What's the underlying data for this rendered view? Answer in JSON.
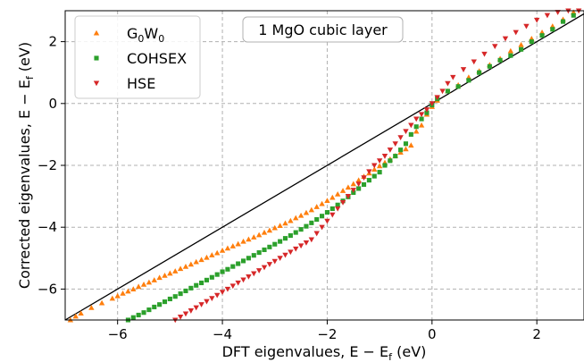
{
  "chart_data": {
    "type": "scatter",
    "title": "1 MgO cubic layer",
    "xlabel_text": "DFT eigenvalues, E",
    "xlabel_units": "(eV)",
    "ylabel_text": "Corrected eigenvalues, E",
    "ylabel_units": "(eV)",
    "sub_f": "f",
    "xlim": [
      -7.0,
      2.9
    ],
    "ylim": [
      -7.0,
      3.0
    ],
    "xticks": [
      -6,
      -4,
      -2,
      0,
      2
    ],
    "yticks": [
      -6,
      -4,
      -2,
      0,
      2
    ],
    "tick_labels": {
      "-6": "−6",
      "-4": "−4",
      "-2": "−2",
      "0": "0",
      "2": "2"
    },
    "grid": true,
    "legend_placement": "top-left",
    "diagonal": {
      "name": "y = x",
      "color": "#000000"
    },
    "series": [
      {
        "name": "G0W0",
        "color": "#ff7f0e",
        "marker": "triangle-up",
        "points": [
          [
            -6.9,
            -7.0
          ],
          [
            -6.8,
            -6.88
          ],
          [
            -6.7,
            -6.78
          ],
          [
            -6.5,
            -6.6
          ],
          [
            -6.3,
            -6.45
          ],
          [
            -6.1,
            -6.3
          ],
          [
            -6.0,
            -6.22
          ],
          [
            -5.9,
            -6.14
          ],
          [
            -5.8,
            -6.07
          ],
          [
            -5.7,
            -6.0
          ],
          [
            -5.6,
            -5.92
          ],
          [
            -5.5,
            -5.85
          ],
          [
            -5.4,
            -5.78
          ],
          [
            -5.3,
            -5.71
          ],
          [
            -5.2,
            -5.63
          ],
          [
            -5.1,
            -5.56
          ],
          [
            -5.0,
            -5.49
          ],
          [
            -4.9,
            -5.42
          ],
          [
            -4.8,
            -5.34
          ],
          [
            -4.7,
            -5.27
          ],
          [
            -4.6,
            -5.2
          ],
          [
            -4.5,
            -5.12
          ],
          [
            -4.4,
            -5.05
          ],
          [
            -4.3,
            -4.98
          ],
          [
            -4.2,
            -4.9
          ],
          [
            -4.1,
            -4.83
          ],
          [
            -4.0,
            -4.75
          ],
          [
            -3.9,
            -4.68
          ],
          [
            -3.8,
            -4.61
          ],
          [
            -3.7,
            -4.54
          ],
          [
            -3.6,
            -4.46
          ],
          [
            -3.5,
            -4.39
          ],
          [
            -3.4,
            -4.32
          ],
          [
            -3.3,
            -4.25
          ],
          [
            -3.2,
            -4.17
          ],
          [
            -3.1,
            -4.1
          ],
          [
            -3.0,
            -4.02
          ],
          [
            -2.9,
            -3.95
          ],
          [
            -2.8,
            -3.87
          ],
          [
            -2.7,
            -3.79
          ],
          [
            -2.6,
            -3.7
          ],
          [
            -2.5,
            -3.62
          ],
          [
            -2.4,
            -3.53
          ],
          [
            -2.3,
            -3.44
          ],
          [
            -2.2,
            -3.34
          ],
          [
            -2.1,
            -3.24
          ],
          [
            -2.0,
            -3.14
          ],
          [
            -1.9,
            -3.04
          ],
          [
            -1.8,
            -2.93
          ],
          [
            -1.7,
            -2.82
          ],
          [
            -1.6,
            -2.71
          ],
          [
            -1.5,
            -2.6
          ],
          [
            -1.4,
            -2.48
          ],
          [
            -1.3,
            -2.36
          ],
          [
            -1.2,
            -2.25
          ],
          [
            -1.1,
            -2.13
          ],
          [
            -1.0,
            -2.02
          ],
          [
            -0.9,
            -1.91
          ],
          [
            -0.8,
            -1.8
          ],
          [
            -0.7,
            -1.69
          ],
          [
            -0.6,
            -1.58
          ],
          [
            -0.5,
            -1.47
          ],
          [
            -0.4,
            -1.35
          ],
          [
            -0.3,
            -0.9
          ],
          [
            -0.2,
            -0.7
          ],
          [
            -0.1,
            -0.35
          ],
          [
            0.0,
            -0.1
          ],
          [
            0.1,
            0.1
          ],
          [
            0.3,
            0.4
          ],
          [
            0.5,
            0.6
          ],
          [
            0.7,
            0.85
          ],
          [
            0.9,
            1.05
          ],
          [
            1.1,
            1.25
          ],
          [
            1.3,
            1.45
          ],
          [
            1.5,
            1.7
          ],
          [
            1.7,
            1.9
          ],
          [
            1.9,
            2.1
          ],
          [
            2.1,
            2.3
          ],
          [
            2.3,
            2.5
          ],
          [
            2.5,
            2.72
          ],
          [
            2.7,
            2.95
          ]
        ]
      },
      {
        "name": "COHSEX",
        "color": "#2ca02c",
        "marker": "square",
        "points": [
          [
            -5.8,
            -7.0
          ],
          [
            -5.7,
            -6.92
          ],
          [
            -5.6,
            -6.84
          ],
          [
            -5.5,
            -6.76
          ],
          [
            -5.4,
            -6.67
          ],
          [
            -5.3,
            -6.58
          ],
          [
            -5.2,
            -6.5
          ],
          [
            -5.1,
            -6.41
          ],
          [
            -5.0,
            -6.32
          ],
          [
            -4.9,
            -6.24
          ],
          [
            -4.8,
            -6.15
          ],
          [
            -4.7,
            -6.06
          ],
          [
            -4.6,
            -5.97
          ],
          [
            -4.5,
            -5.88
          ],
          [
            -4.4,
            -5.8
          ],
          [
            -4.3,
            -5.71
          ],
          [
            -4.2,
            -5.62
          ],
          [
            -4.1,
            -5.53
          ],
          [
            -4.0,
            -5.44
          ],
          [
            -3.9,
            -5.36
          ],
          [
            -3.8,
            -5.27
          ],
          [
            -3.7,
            -5.18
          ],
          [
            -3.6,
            -5.09
          ],
          [
            -3.5,
            -5.0
          ],
          [
            -3.4,
            -4.91
          ],
          [
            -3.3,
            -4.82
          ],
          [
            -3.2,
            -4.73
          ],
          [
            -3.1,
            -4.64
          ],
          [
            -3.0,
            -4.55
          ],
          [
            -2.9,
            -4.46
          ],
          [
            -2.8,
            -4.36
          ],
          [
            -2.7,
            -4.27
          ],
          [
            -2.6,
            -4.17
          ],
          [
            -2.5,
            -4.07
          ],
          [
            -2.4,
            -3.97
          ],
          [
            -2.3,
            -3.86
          ],
          [
            -2.2,
            -3.75
          ],
          [
            -2.1,
            -3.64
          ],
          [
            -2.0,
            -3.52
          ],
          [
            -1.9,
            -3.4
          ],
          [
            -1.8,
            -3.28
          ],
          [
            -1.7,
            -3.15
          ],
          [
            -1.6,
            -3.02
          ],
          [
            -1.5,
            -2.88
          ],
          [
            -1.4,
            -2.75
          ],
          [
            -1.3,
            -2.62
          ],
          [
            -1.2,
            -2.48
          ],
          [
            -1.1,
            -2.35
          ],
          [
            -1.0,
            -2.22
          ],
          [
            -0.9,
            -2.0
          ],
          [
            -0.8,
            -1.85
          ],
          [
            -0.7,
            -1.7
          ],
          [
            -0.6,
            -1.5
          ],
          [
            -0.5,
            -1.3
          ],
          [
            -0.4,
            -1.0
          ],
          [
            -0.3,
            -0.75
          ],
          [
            -0.2,
            -0.5
          ],
          [
            -0.1,
            -0.3
          ],
          [
            0.0,
            -0.05
          ],
          [
            0.1,
            0.15
          ],
          [
            0.3,
            0.4
          ],
          [
            0.5,
            0.55
          ],
          [
            0.7,
            0.75
          ],
          [
            0.9,
            1.0
          ],
          [
            1.1,
            1.2
          ],
          [
            1.3,
            1.4
          ],
          [
            1.5,
            1.55
          ],
          [
            1.7,
            1.75
          ],
          [
            1.9,
            2.0
          ],
          [
            2.1,
            2.2
          ],
          [
            2.3,
            2.4
          ],
          [
            2.5,
            2.65
          ],
          [
            2.7,
            2.85
          ]
        ]
      },
      {
        "name": "HSE",
        "color": "#d62728",
        "marker": "triangle-down",
        "points": [
          [
            -4.9,
            -7.0
          ],
          [
            -4.8,
            -6.9
          ],
          [
            -4.7,
            -6.8
          ],
          [
            -4.6,
            -6.7
          ],
          [
            -4.5,
            -6.6
          ],
          [
            -4.4,
            -6.5
          ],
          [
            -4.3,
            -6.4
          ],
          [
            -4.2,
            -6.3
          ],
          [
            -4.1,
            -6.2
          ],
          [
            -4.0,
            -6.1
          ],
          [
            -3.9,
            -6.0
          ],
          [
            -3.8,
            -5.9
          ],
          [
            -3.7,
            -5.8
          ],
          [
            -3.6,
            -5.7
          ],
          [
            -3.5,
            -5.6
          ],
          [
            -3.4,
            -5.5
          ],
          [
            -3.3,
            -5.4
          ],
          [
            -3.2,
            -5.3
          ],
          [
            -3.1,
            -5.2
          ],
          [
            -3.0,
            -5.1
          ],
          [
            -2.9,
            -5.0
          ],
          [
            -2.8,
            -4.9
          ],
          [
            -2.7,
            -4.8
          ],
          [
            -2.6,
            -4.7
          ],
          [
            -2.5,
            -4.6
          ],
          [
            -2.4,
            -4.5
          ],
          [
            -2.3,
            -4.4
          ],
          [
            -2.2,
            -4.2
          ],
          [
            -2.1,
            -4.0
          ],
          [
            -2.0,
            -3.8
          ],
          [
            -1.9,
            -3.6
          ],
          [
            -1.8,
            -3.4
          ],
          [
            -1.7,
            -3.2
          ],
          [
            -1.6,
            -3.0
          ],
          [
            -1.5,
            -2.8
          ],
          [
            -1.4,
            -2.6
          ],
          [
            -1.3,
            -2.4
          ],
          [
            -1.2,
            -2.2
          ],
          [
            -1.1,
            -2.0
          ],
          [
            -1.0,
            -1.85
          ],
          [
            -0.9,
            -1.7
          ],
          [
            -0.8,
            -1.5
          ],
          [
            -0.7,
            -1.3
          ],
          [
            -0.6,
            -1.1
          ],
          [
            -0.5,
            -0.9
          ],
          [
            -0.4,
            -0.7
          ],
          [
            -0.3,
            -0.5
          ],
          [
            -0.2,
            -0.35
          ],
          [
            -0.1,
            -0.2
          ],
          [
            0.0,
            0.0
          ],
          [
            0.1,
            0.2
          ],
          [
            0.2,
            0.4
          ],
          [
            0.3,
            0.65
          ],
          [
            0.4,
            0.85
          ],
          [
            0.6,
            1.1
          ],
          [
            0.8,
            1.35
          ],
          [
            1.0,
            1.6
          ],
          [
            1.2,
            1.85
          ],
          [
            1.4,
            2.1
          ],
          [
            1.6,
            2.3
          ],
          [
            1.8,
            2.5
          ],
          [
            2.0,
            2.7
          ],
          [
            2.2,
            2.85
          ],
          [
            2.4,
            2.95
          ],
          [
            2.6,
            3.0
          ],
          [
            2.8,
            3.0
          ]
        ]
      }
    ]
  }
}
